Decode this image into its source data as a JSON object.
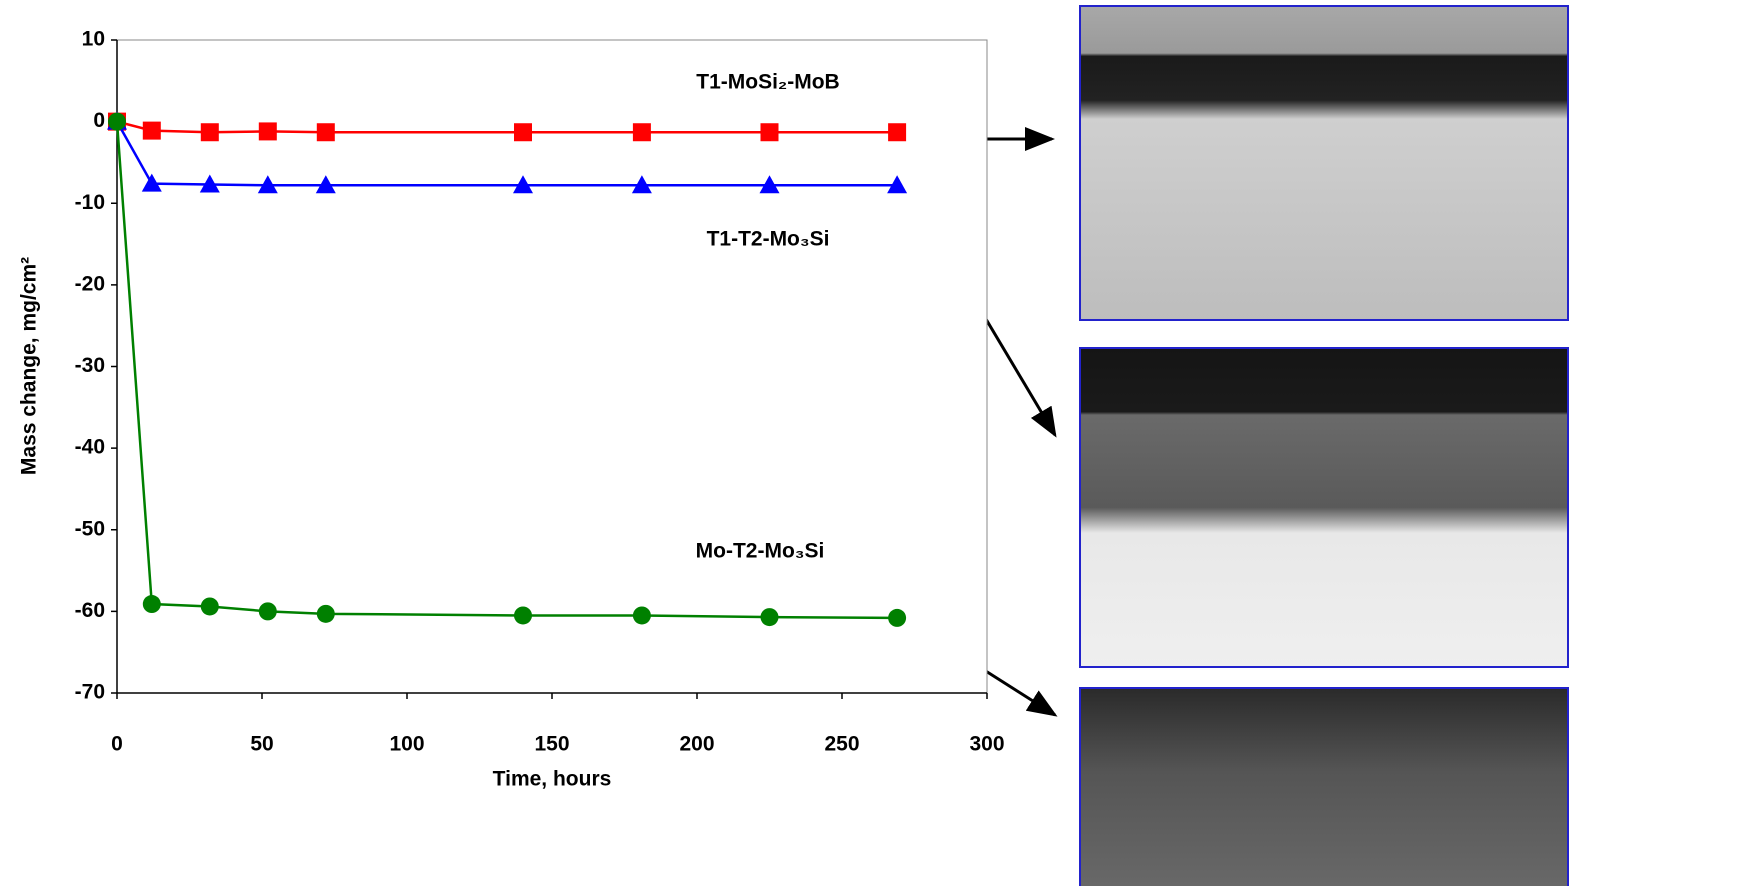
{
  "chart_data": {
    "type": "line",
    "x_label": "Time, hours",
    "y_label": "Mass change, mg/cm²",
    "x": [
      0,
      12,
      32,
      52,
      72,
      140,
      181,
      225,
      269
    ],
    "series": [
      {
        "name": "T1-MoSi₂-MoB",
        "color": "#ff0000",
        "marker": "square",
        "values": [
          0,
          -1.1,
          -1.3,
          -1.2,
          -1.3,
          -1.3,
          -1.3,
          -1.3,
          -1.3
        ]
      },
      {
        "name": "T1-T2-Mo₃Si",
        "color": "#0000ff",
        "marker": "triangle",
        "values": [
          0,
          -7.6,
          -7.7,
          -7.8,
          -7.8,
          -7.8,
          -7.8,
          -7.8,
          -7.8
        ]
      },
      {
        "name": "Mo-T2-Mo₃Si",
        "color": "#008000",
        "marker": "circle",
        "values": [
          0,
          -59.1,
          -59.4,
          -60.0,
          -60.3,
          -60.5,
          -60.5,
          -60.7,
          -60.8
        ]
      }
    ],
    "xlim": [
      0,
      300
    ],
    "xticks": [
      0,
      50,
      100,
      150,
      200,
      250,
      300
    ],
    "ylim": [
      -70,
      10
    ],
    "yticks": [
      10,
      0,
      -10,
      -20,
      -30,
      -40,
      -50,
      -60,
      -70
    ],
    "grid": false
  }
}
